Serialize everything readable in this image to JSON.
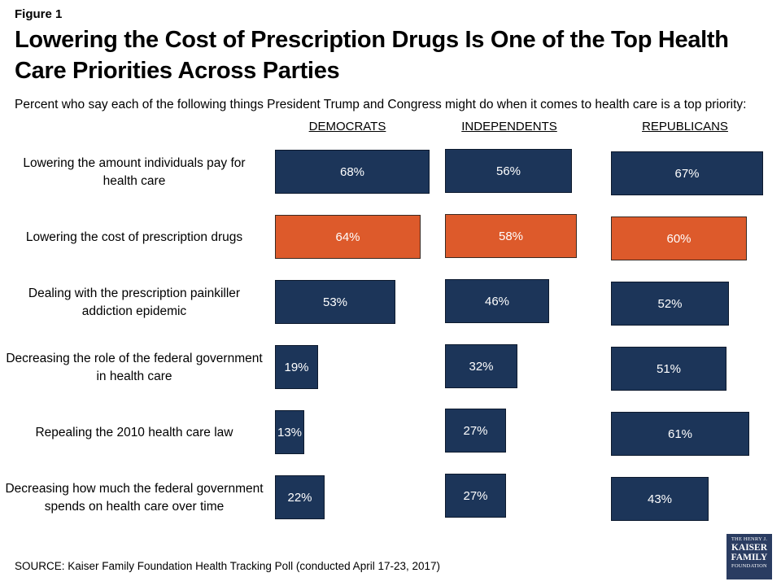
{
  "figure_label": "Figure 1",
  "title": "Lowering the Cost of Prescription Drugs Is One of the Top Health Care Priorities Across Parties",
  "subtitle": "Percent who say each of the following things President Trump and Congress might do when it comes to health care is a top priority:",
  "source": "SOURCE: Kaiser Family Foundation Health Tracking Poll (conducted April 17-23, 2017)",
  "logo": {
    "line1": "THE HENRY J.",
    "line2": "KAISER",
    "line3": "FAMILY",
    "line4": "FOUNDATION"
  },
  "colors": {
    "bar_default": "#1c3559",
    "bar_highlight": "#dd5a2b",
    "label_text": "#ffffff"
  },
  "chart_data": {
    "type": "bar",
    "orientation": "horizontal",
    "value_format": "percent",
    "categories": [
      "Lowering the amount individuals pay for health care",
      "Lowering the cost of prescription drugs",
      "Dealing with the prescription painkiller addiction epidemic",
      "Decreasing the role of the federal government in health care",
      "Repealing the 2010 health care law",
      "Decreasing how much the federal government spends on health care over time"
    ],
    "highlight_category_index": 1,
    "series": [
      {
        "name": "DEMOCRATS",
        "values": [
          68,
          64,
          53,
          19,
          13,
          22
        ],
        "labels": [
          "68%",
          "64%",
          "53%",
          "19%",
          "13%",
          "22%"
        ]
      },
      {
        "name": "INDEPENDENTS",
        "values": [
          56,
          58,
          46,
          32,
          27,
          27
        ],
        "labels": [
          "56%",
          "58%",
          "46%",
          "32%",
          "27%",
          "27%"
        ]
      },
      {
        "name": "REPUBLICANS",
        "values": [
          67,
          60,
          52,
          51,
          61,
          43
        ],
        "labels": [
          "67%",
          "60%",
          "52%",
          "51%",
          "61%",
          "43%"
        ]
      }
    ]
  }
}
